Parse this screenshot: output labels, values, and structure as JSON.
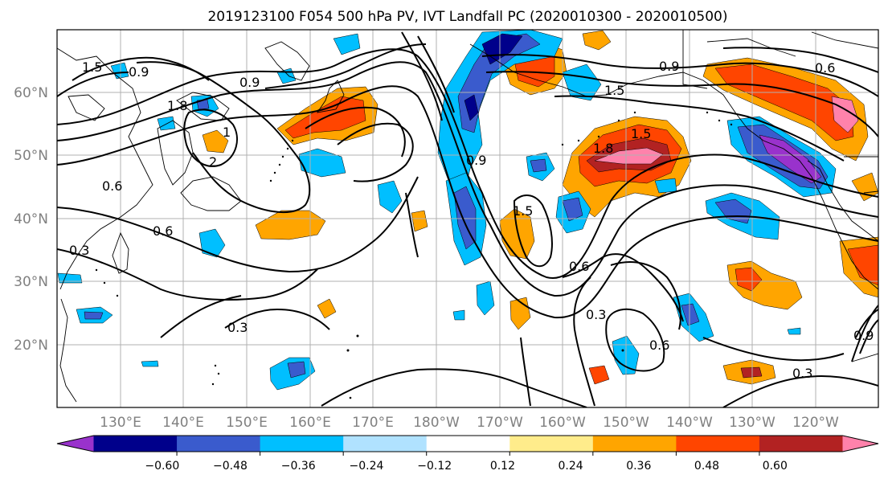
{
  "title": "2019123100 F054 500 hPa PV, IVT Landfall PC (2020010300 - 2020010500)",
  "colors": {
    "grid": "#b0b0b0",
    "coast": "#000000",
    "contour": "#000000",
    "tick_label": "#808080"
  },
  "map": {
    "lon_ticks": [
      "130°E",
      "140°E",
      "150°E",
      "160°E",
      "170°E",
      "180°W",
      "170°W",
      "160°W",
      "150°W",
      "140°W",
      "130°W",
      "120°W"
    ],
    "lat_ticks": [
      "20°N",
      "30°N",
      "40°N",
      "50°N",
      "60°N"
    ]
  },
  "colorbar": {
    "colors": [
      "#9932cc",
      "#00008b",
      "#3a5bcd",
      "#00bfff",
      "#b0e2ff",
      "#ffffff",
      "#ffec8b",
      "#ffa500",
      "#ff4500",
      "#b22222",
      "#ff82ab"
    ],
    "tick_labels": [
      "−0.60",
      "−0.48",
      "−0.36",
      "−0.24",
      "−0.12",
      "0.12",
      "0.24",
      "0.36",
      "0.48",
      "0.60"
    ]
  },
  "contour_labels": [
    "1.5",
    "0.9",
    "1.8",
    "0.9",
    "1",
    "2",
    "0.6",
    "0.6",
    "0.3",
    "0.3",
    "1.5",
    "0.6",
    "0.9",
    "0.6",
    "1.8",
    "1.5",
    "0.3",
    "0.6",
    "0.3",
    "0.9",
    "1.5",
    "0.9"
  ]
}
